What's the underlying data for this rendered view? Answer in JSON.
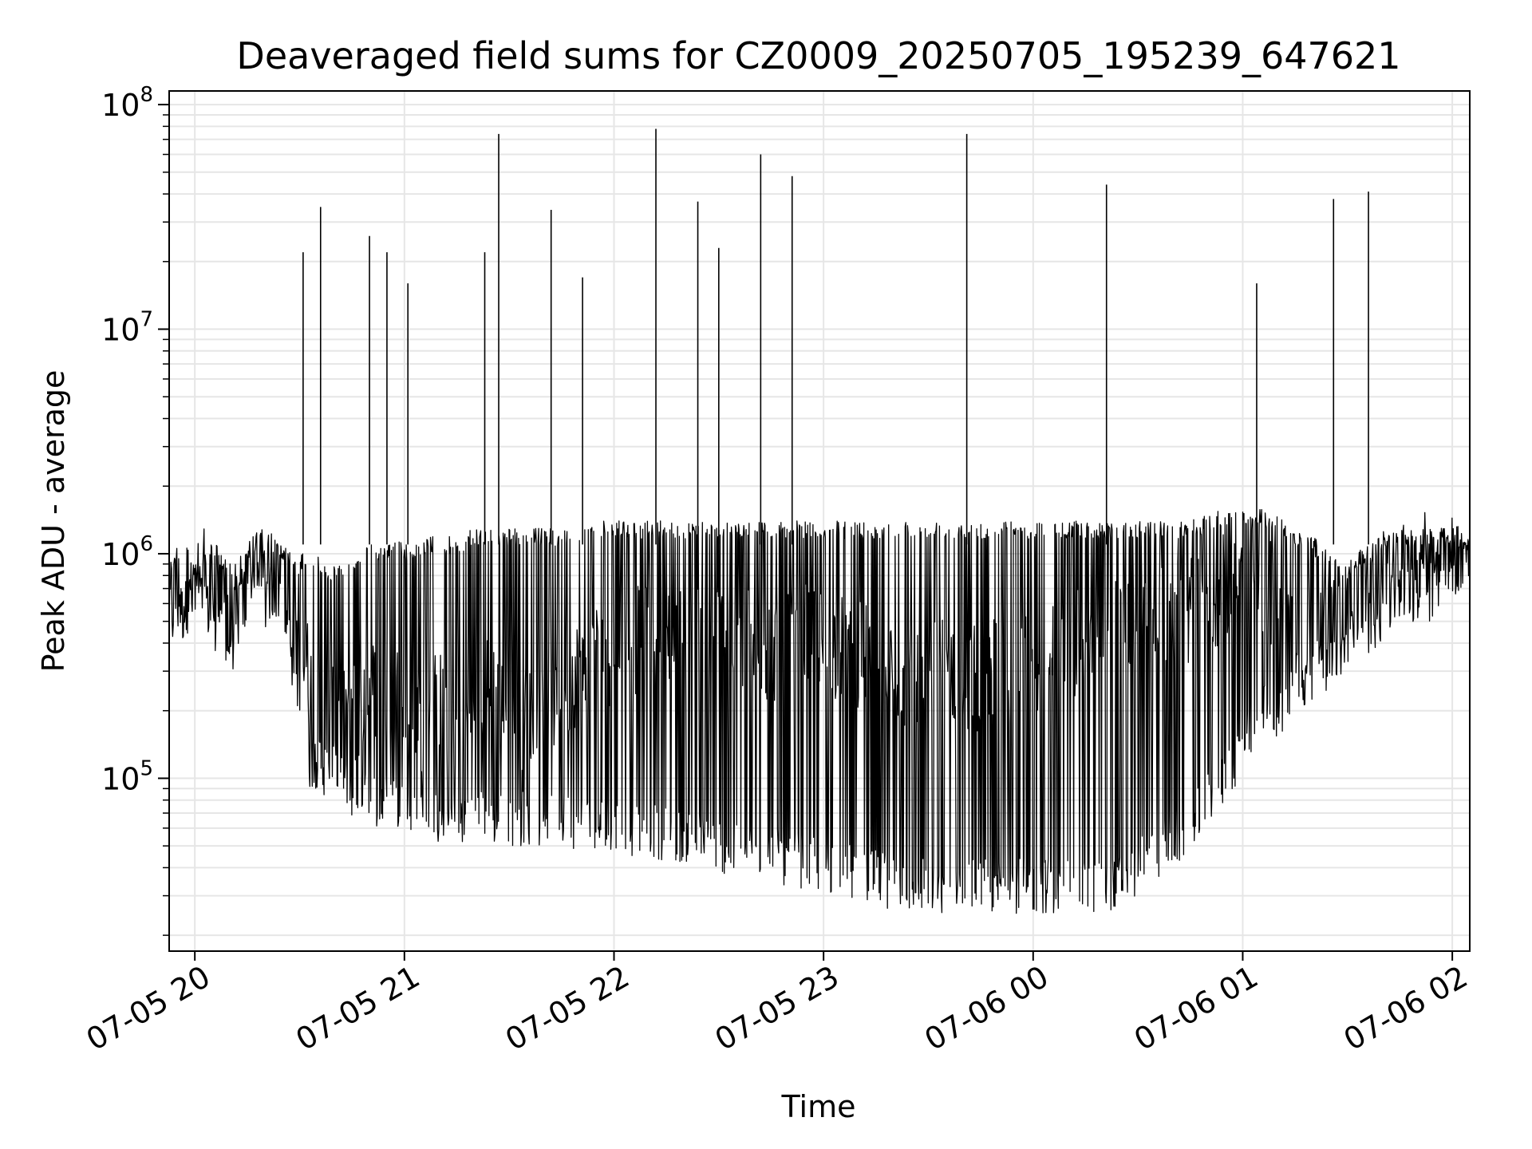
{
  "chart_data": {
    "type": "line",
    "title": "Deaveraged field sums for CZ0009_20250705_195239_647621",
    "xlabel": "Time",
    "ylabel": "Peak ADU - average",
    "y_scale": "log",
    "ylim": [
      17000,
      115000000
    ],
    "xlim": [
      "2025-07-05T19:52:39",
      "2025-07-06T02:05:00"
    ],
    "grid": true,
    "line_color": "#000000",
    "grid_color": "#e6e6e6",
    "x_ticks": [
      {
        "value": "2025-07-05T20:00:00",
        "label": "07-05 20"
      },
      {
        "value": "2025-07-05T21:00:00",
        "label": "07-05 21"
      },
      {
        "value": "2025-07-05T22:00:00",
        "label": "07-05 22"
      },
      {
        "value": "2025-07-05T23:00:00",
        "label": "07-05 23"
      },
      {
        "value": "2025-07-06T00:00:00",
        "label": "07-06 00"
      },
      {
        "value": "2025-07-06T01:00:00",
        "label": "07-06 01"
      },
      {
        "value": "2025-07-06T02:00:00",
        "label": "07-06 02"
      }
    ],
    "y_ticks": [
      {
        "value": 100000,
        "base": "10",
        "exp": "5"
      },
      {
        "value": 1000000,
        "base": "10",
        "exp": "6"
      },
      {
        "value": 10000000,
        "base": "10",
        "exp": "7"
      },
      {
        "value": 100000000,
        "base": "10",
        "exp": "8"
      }
    ],
    "series": [
      {
        "x": [
          "2025-07-05T19:52:39",
          "2025-07-05T19:55:00",
          "2025-07-05T19:57:00",
          "2025-07-05T19:58:00",
          "2025-07-05T19:59:00",
          "2025-07-05T20:02:00",
          "2025-07-05T20:05:00",
          "2025-07-05T20:08:00",
          "2025-07-05T20:10:00",
          "2025-07-05T20:12:00",
          "2025-07-05T20:14:00",
          "2025-07-05T20:16:00",
          "2025-07-05T20:20:00",
          "2025-07-05T20:22:00",
          "2025-07-05T20:25:00",
          "2025-07-05T20:28:00",
          "2025-07-05T20:31:00",
          "2025-07-05T20:33:00",
          "2025-07-05T20:35:00",
          "2025-07-05T20:38:00",
          "2025-07-05T20:42:00",
          "2025-07-05T20:46:00",
          "2025-07-05T20:50:00",
          "2025-07-05T20:54:00",
          "2025-07-05T20:57:00",
          "2025-07-05T21:00:00",
          "2025-07-05T21:04:00",
          "2025-07-05T21:07:00",
          "2025-07-05T21:12:00",
          "2025-07-05T21:16:00",
          "2025-07-05T21:20:00",
          "2025-07-05T21:24:00",
          "2025-07-05T21:28:00",
          "2025-07-05T21:32:00",
          "2025-07-05T21:36:00",
          "2025-07-05T21:40:00",
          "2025-07-05T21:45:00",
          "2025-07-05T21:50:00",
          "2025-07-05T21:55:00",
          "2025-07-05T22:00:00",
          "2025-07-05T22:05:00",
          "2025-07-05T22:10:00",
          "2025-07-05T22:15:00",
          "2025-07-05T22:20:00",
          "2025-07-05T22:25:00",
          "2025-07-05T22:30:00",
          "2025-07-05T22:35:00",
          "2025-07-05T22:40:00",
          "2025-07-05T22:45:00",
          "2025-07-05T22:50:00",
          "2025-07-05T22:55:00",
          "2025-07-05T23:00:00",
          "2025-07-05T23:05:00",
          "2025-07-05T23:10:00",
          "2025-07-05T23:15:00",
          "2025-07-05T23:20:00",
          "2025-07-05T23:25:00",
          "2025-07-05T23:30:00",
          "2025-07-05T23:35:00",
          "2025-07-05T23:40:00",
          "2025-07-05T23:45:00",
          "2025-07-05T23:50:00",
          "2025-07-05T23:55:00",
          "2025-07-06T00:00:00",
          "2025-07-06T00:05:00",
          "2025-07-06T00:10:00",
          "2025-07-06T00:15:00",
          "2025-07-06T00:20:00",
          "2025-07-06T00:25:00",
          "2025-07-06T00:30:00",
          "2025-07-06T00:35:00",
          "2025-07-06T00:40:00",
          "2025-07-06T00:45:00",
          "2025-07-06T00:50:00",
          "2025-07-06T00:55:00",
          "2025-07-06T01:00:00",
          "2025-07-06T01:05:00",
          "2025-07-06T01:10:00",
          "2025-07-06T01:15:00",
          "2025-07-06T01:20:00",
          "2025-07-06T01:25:00",
          "2025-07-06T01:30:00",
          "2025-07-06T01:35:00",
          "2025-07-06T01:40:00",
          "2025-07-06T01:45:00",
          "2025-07-06T01:50:00",
          "2025-07-06T01:55:00",
          "2025-07-06T02:00:00",
          "2025-07-06T02:05:00"
        ],
        "y": [
          550000,
          700000,
          650000,
          800000,
          700000,
          750000,
          650000,
          600000,
          550000,
          500000,
          650000,
          800000,
          700000,
          900000,
          800000,
          600000,
          400000,
          250000,
          200000,
          180000,
          170000,
          200000,
          250000,
          300000,
          250000,
          200000,
          180000,
          200000,
          220000,
          180000,
          200000,
          250000,
          220000,
          200000,
          180000,
          200000,
          250000,
          300000,
          350000,
          380000,
          400000,
          420000,
          450000,
          400000,
          420000,
          450000,
          420000,
          400000,
          380000,
          400000,
          420000,
          400000,
          380000,
          350000,
          330000,
          300000,
          280000,
          300000,
          320000,
          300000,
          280000,
          300000,
          320000,
          330000,
          350000,
          380000,
          400000,
          420000,
          450000,
          480000,
          500000,
          520000,
          550000,
          600000,
          700000,
          900000,
          800000,
          600000,
          500000,
          450000,
          500000,
          550000,
          600000,
          700000,
          800000,
          850000,
          900000,
          950000,
          1000000
        ],
        "upper": [
          1100000,
          1000000,
          1050000,
          1100000,
          1000000,
          900000,
          1200000,
          1000000,
          900000,
          800000,
          900000,
          1200000,
          1300000,
          1200000,
          1100000,
          1000000,
          1000000,
          900000,
          1000000,
          900000,
          900000,
          1000000,
          1100000,
          1100000,
          1200000,
          1100000,
          1100000,
          1200000,
          1200000,
          1200000,
          1300000,
          1300000,
          1300000,
          1300000,
          1300000,
          1300000,
          1300000,
          1300000,
          1400000,
          1400000,
          1400000,
          1400000,
          1400000,
          1400000,
          1400000,
          1400000,
          1400000,
          1400000,
          1400000,
          1400000,
          1400000,
          1400000,
          1400000,
          1400000,
          1400000,
          1400000,
          1400000,
          1400000,
          1400000,
          1400000,
          1400000,
          1400000,
          1400000,
          1400000,
          1400000,
          1400000,
          1400000,
          1400000,
          1400000,
          1400000,
          1400000,
          1400000,
          1400000,
          1500000,
          1600000,
          1600000,
          1600000,
          1500000,
          1300000,
          1200000,
          1000000,
          900000,
          1100000,
          1200000,
          1300000,
          1300000,
          1300000,
          1300000,
          1200000
        ],
        "lower": [
          400000,
          450000,
          400000,
          500000,
          450000,
          450000,
          400000,
          300000,
          300000,
          350000,
          500000,
          600000,
          500000,
          500000,
          400000,
          250000,
          100000,
          90000,
          90000,
          80000,
          70000,
          60000,
          60000,
          60000,
          60000,
          60000,
          55000,
          50000,
          50000,
          50000,
          50000,
          50000,
          50000,
          50000,
          50000,
          50000,
          50000,
          48000,
          47000,
          46000,
          45000,
          44000,
          43000,
          42000,
          40000,
          38000,
          36000,
          35000,
          34000,
          33000,
          32000,
          31000,
          30000,
          28000,
          27000,
          26000,
          25000,
          25000,
          25000,
          25000,
          25000,
          25000,
          25000,
          25000,
          25000,
          25000,
          25000,
          25000,
          27000,
          30000,
          35000,
          40000,
          45000,
          60000,
          80000,
          100000,
          150000,
          150000,
          200000,
          200000,
          250000,
          300000,
          350000,
          400000,
          500000,
          600000,
          700000,
          700000,
          700000
        ]
      }
    ],
    "spikes": [
      {
        "x": "2025-07-05T20:31:00",
        "y": 22000000
      },
      {
        "x": "2025-07-05T20:36:00",
        "y": 35000000
      },
      {
        "x": "2025-07-05T20:50:00",
        "y": 26000000
      },
      {
        "x": "2025-07-05T20:55:00",
        "y": 22000000
      },
      {
        "x": "2025-07-05T21:01:00",
        "y": 16000000
      },
      {
        "x": "2025-07-05T21:23:00",
        "y": 22000000
      },
      {
        "x": "2025-07-05T21:27:00",
        "y": 74000000
      },
      {
        "x": "2025-07-05T21:42:00",
        "y": 34000000
      },
      {
        "x": "2025-07-05T21:51:00",
        "y": 17000000
      },
      {
        "x": "2025-07-05T22:12:00",
        "y": 78000000
      },
      {
        "x": "2025-07-05T22:24:00",
        "y": 37000000
      },
      {
        "x": "2025-07-05T22:30:00",
        "y": 23000000
      },
      {
        "x": "2025-07-05T22:42:00",
        "y": 60000000
      },
      {
        "x": "2025-07-05T22:51:00",
        "y": 48000000
      },
      {
        "x": "2025-07-05T23:41:00",
        "y": 74000000
      },
      {
        "x": "2025-07-06T00:21:00",
        "y": 44000000
      },
      {
        "x": "2025-07-06T01:04:00",
        "y": 16000000
      },
      {
        "x": "2025-07-06T01:26:00",
        "y": 38000000
      },
      {
        "x": "2025-07-06T01:36:00",
        "y": 41000000
      }
    ]
  }
}
